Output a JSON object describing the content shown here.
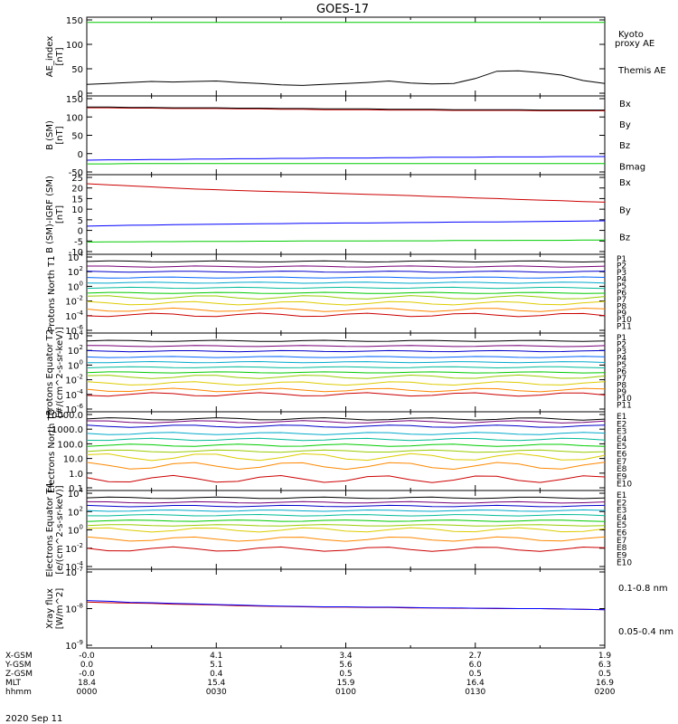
{
  "title": "GOES-17",
  "date": "2020 Sep 11",
  "time_axis": {
    "hhmm": [
      "0000",
      "0030",
      "0100",
      "0130",
      "0200"
    ],
    "row_labels": [
      "X-GSM",
      "Y-GSM",
      "Z-GSM",
      "MLT",
      "hhmm"
    ],
    "columns": [
      {
        "x": "-0.0",
        "y": "0.0",
        "z": "-0.0",
        "mlt": "18.4",
        "hhmm": "0000"
      },
      {
        "x": "4.1",
        "y": "5.1",
        "z": "0.4",
        "mlt": "15.4",
        "hhmm": "0030"
      },
      {
        "x": "3.4",
        "y": "5.6",
        "z": "0.5",
        "mlt": "15.9",
        "hhmm": "0100"
      },
      {
        "x": "2.7",
        "y": "6.0",
        "z": "0.5",
        "mlt": "16.4",
        "hhmm": "0130"
      },
      {
        "x": "1.9",
        "y": "6.3",
        "z": "0.5",
        "mlt": "16.9",
        "hhmm": "0200"
      }
    ]
  },
  "colors": {
    "black": "#000000",
    "blue": "#0000ff",
    "green": "#00cc00",
    "red": "#cc0000",
    "P": [
      "#000000",
      "#770077",
      "#0000cc",
      "#0066ff",
      "#00aacc",
      "#00bb99",
      "#00cc00",
      "#99cc00",
      "#ddcc00",
      "#ff8800",
      "#cc0000"
    ],
    "E": [
      "#000000",
      "#770077",
      "#0000cc",
      "#00aacc",
      "#00bb99",
      "#00cc00",
      "#99cc00",
      "#ddcc00",
      "#ff8800",
      "#cc0000"
    ]
  },
  "chart_data": [
    {
      "type": "line",
      "id": "ae",
      "ylabel": "AE_index [nT]",
      "ylim": [
        0,
        150
      ],
      "yticks": [
        "0",
        "50",
        "100",
        "150"
      ],
      "legend": [
        "Kyoto proxy AE",
        "Themis AE"
      ],
      "series": [
        {
          "name": "Kyoto proxy AE",
          "color": "#00cc00",
          "values": [
            145,
            145,
            145,
            145,
            145,
            145,
            145,
            145,
            145,
            145,
            145,
            145,
            145,
            145,
            145,
            145,
            145,
            145,
            145,
            145,
            145,
            145,
            145,
            145,
            145
          ]
        },
        {
          "name": "Themis AE",
          "color": "#000000",
          "values": [
            18,
            20,
            22,
            24,
            23,
            24,
            25,
            22,
            20,
            17,
            16,
            18,
            20,
            22,
            25,
            21,
            19,
            20,
            30,
            45,
            46,
            42,
            37,
            26,
            20
          ]
        }
      ]
    },
    {
      "type": "line",
      "id": "bsm",
      "ylabel": "B (SM) [nT]",
      "ylim": [
        -50,
        150
      ],
      "yticks": [
        "-50",
        "0",
        "50",
        "100",
        "150"
      ],
      "legend": [
        "Bx",
        "By",
        "Bz",
        "Bmag"
      ],
      "series": [
        {
          "name": "Bx",
          "color": "#0000ff",
          "values": [
            -18,
            -17,
            -17,
            -16,
            -16,
            -15,
            -15,
            -14,
            -14,
            -13,
            -13,
            -12,
            -12,
            -12,
            -11,
            -11,
            -10,
            -10,
            -10,
            -9,
            -9,
            -9,
            -8,
            -8,
            -8
          ]
        },
        {
          "name": "By",
          "color": "#00cc00",
          "values": [
            -28,
            -28,
            -27,
            -27,
            -27,
            -27,
            -27,
            -27,
            -27,
            -27,
            -27,
            -27,
            -27,
            -27,
            -27,
            -27,
            -27,
            -27,
            -27,
            -27,
            -27,
            -27,
            -27,
            -27,
            -27
          ]
        },
        {
          "name": "Bz",
          "color": "#cc0000",
          "values": [
            125,
            125,
            124,
            124,
            123,
            123,
            123,
            122,
            122,
            121,
            121,
            120,
            120,
            120,
            119,
            119,
            119,
            118,
            118,
            118,
            118,
            117,
            117,
            117,
            117
          ]
        },
        {
          "name": "Bmag",
          "color": "#000000",
          "values": [
            127,
            127,
            126,
            126,
            125,
            125,
            125,
            124,
            124,
            123,
            123,
            122,
            122,
            122,
            121,
            121,
            121,
            120,
            120,
            120,
            120,
            119,
            119,
            119,
            119
          ]
        }
      ]
    },
    {
      "type": "line",
      "id": "bigrf",
      "ylabel": "B (SM)-IGRF (SM) [nT]",
      "ylim": [
        -10,
        25
      ],
      "yticks": [
        "-10",
        "-5",
        "0",
        "5",
        "10",
        "15",
        "20",
        "25"
      ],
      "legend": [
        "Bx",
        "By",
        "Bz"
      ],
      "series": [
        {
          "name": "Bx",
          "color": "#0000ff",
          "values": [
            2,
            2.2,
            2.4,
            2.5,
            2.7,
            2.8,
            2.9,
            3,
            3.1,
            3.2,
            3.3,
            3.4,
            3.5,
            3.5,
            3.6,
            3.7,
            3.8,
            3.9,
            4,
            4,
            4.1,
            4.2,
            4.3,
            4.4,
            4.5
          ]
        },
        {
          "name": "By",
          "color": "#00cc00",
          "values": [
            -5.5,
            -5.4,
            -5.4,
            -5.3,
            -5.3,
            -5.2,
            -5.2,
            -5.2,
            -5.1,
            -5.1,
            -5,
            -5,
            -5,
            -5,
            -4.9,
            -4.9,
            -4.9,
            -4.8,
            -4.8,
            -4.8,
            -4.7,
            -4.7,
            -4.7,
            -4.6,
            -4.6
          ]
        },
        {
          "name": "Bz",
          "color": "#cc0000",
          "values": [
            22,
            21.5,
            21,
            20.5,
            20,
            19.5,
            19.2,
            18.8,
            18.5,
            18.2,
            18,
            17.6,
            17.3,
            17,
            16.7,
            16.4,
            16,
            15.7,
            15.3,
            15,
            14.6,
            14.3,
            14,
            13.6,
            13.3
          ]
        }
      ]
    },
    {
      "type": "line",
      "id": "ppt1",
      "scale": "log",
      "ylabel": "Protons North T1",
      "ylim_exp": [
        -6,
        4
      ],
      "yticks": [
        "10^4",
        "10^2",
        "10^0",
        "10^-2",
        "10^-4",
        "10^-6"
      ],
      "legend": [
        "P1",
        "P2",
        "P3",
        "P4",
        "P5",
        "P6",
        "P7",
        "P8",
        "P9",
        "P10",
        "P11"
      ],
      "levels_exp": [
        3.4,
        2.7,
        2.0,
        1.2,
        0.5,
        -0.2,
        -0.9,
        -1.5,
        -2.3,
        -3.2,
        -3.9
      ]
    },
    {
      "type": "line",
      "id": "ppt2",
      "scale": "log",
      "ylabel": "Protons Equator T2 [#/(cm^2-s-sr-keV)]",
      "ylim_exp": [
        -6,
        4
      ],
      "yticks": [
        "10^4",
        "10^2",
        "10^0",
        "10^-2",
        "10^-4",
        "10^-6"
      ],
      "legend": [
        "P1",
        "P2",
        "P3",
        "P4",
        "P5",
        "P6",
        "P7",
        "P8",
        "P9",
        "P10",
        "P11"
      ],
      "levels_exp": [
        3.3,
        2.6,
        1.9,
        1.1,
        0.4,
        -0.3,
        -1.0,
        -1.6,
        -2.5,
        -3.4,
        -4.0
      ]
    },
    {
      "type": "line",
      "id": "et3",
      "scale": "log",
      "ylabel": "Electrons North T3",
      "ylim_exp": [
        -1,
        4
      ],
      "yticks": [
        "10000.0",
        "1000.0",
        "100.0",
        "10.0",
        "1.0",
        "0.1"
      ],
      "legend": [
        "E1",
        "E2",
        "E3",
        "E4",
        "E5",
        "E6",
        "E7",
        "E8",
        "E9",
        "E10"
      ],
      "levels_exp": [
        3.7,
        3.5,
        3.2,
        2.7,
        2.3,
        1.9,
        1.5,
        1.1,
        0.5,
        -0.4
      ]
    },
    {
      "type": "line",
      "id": "et4",
      "scale": "log",
      "ylabel": "Electrons Equator T4 [e/(cm^2-s-sr-keV)]",
      "ylim_exp": [
        -4,
        4
      ],
      "yticks": [
        "10^4",
        "10^2",
        "10^0",
        "10^-2",
        "10^-4"
      ],
      "legend": [
        "E1",
        "E2",
        "E3",
        "E4",
        "E5",
        "E6",
        "E7",
        "E8",
        "E9",
        "E10"
      ],
      "levels_exp": [
        3.5,
        3.0,
        2.6,
        2.1,
        1.6,
        1.0,
        0.5,
        0,
        -1.0,
        -2.1
      ]
    },
    {
      "type": "line",
      "id": "xray",
      "scale": "log",
      "ylabel": "Xray flux [W/m^2]",
      "ylim_exp": [
        -9,
        -7
      ],
      "yticks": [
        "10^-7",
        "10^-8",
        "10^-9"
      ],
      "legend": [
        "0.1-0.8 nm",
        "0.05-0.4 nm"
      ],
      "series": [
        {
          "name": "0.1-0.8 nm",
          "color": "#cc0000",
          "values": [
            -7.82,
            -7.84,
            -7.85,
            -7.86,
            -7.88,
            -7.89,
            -7.9,
            -7.92,
            -7.93,
            -7.94,
            -7.95,
            -7.96,
            -7.96,
            -7.97,
            -7.97,
            -7.98,
            -7.98,
            -7.99,
            -7.99,
            -8.0,
            -8.0,
            -8.0,
            -8.01,
            -8.02,
            -8.03
          ]
        },
        {
          "name": "0.05-0.4 nm",
          "color": "#0000ff",
          "values": [
            -7.78,
            -7.8,
            -7.83,
            -7.84,
            -7.86,
            -7.87,
            -7.89,
            -7.9,
            -7.92,
            -7.93,
            -7.94,
            -7.95,
            -7.95,
            -7.96,
            -7.96,
            -7.97,
            -7.98,
            -7.98,
            -7.99,
            -7.99,
            -8.0,
            -8.0,
            -8.01,
            -8.02,
            -8.03
          ]
        }
      ]
    }
  ]
}
